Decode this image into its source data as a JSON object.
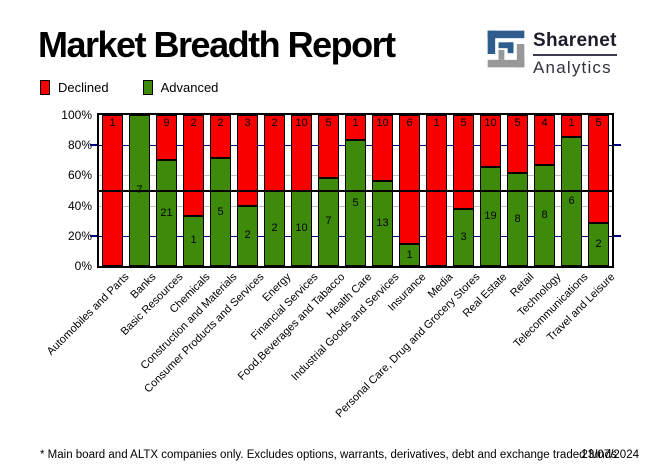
{
  "title": "Market Breadth Report",
  "logo": {
    "name": "Sharenet",
    "division": "Analytics",
    "blue": "#2e5c8c",
    "gray": "#97989a"
  },
  "legend": {
    "declined_label": "Declined",
    "advanced_label": "Advanced"
  },
  "colors": {
    "declined": "#f80000",
    "advanced": "#3e8a0a",
    "grid_navy": "#000080",
    "grid_gray": "#c0c0c0",
    "reference_line": "#000000"
  },
  "chart_data": {
    "type": "bar",
    "stacked": true,
    "normalized": "percent_of_total",
    "title": "Market Breadth Report",
    "categories": [
      "Automobiles and Parts",
      "Banks",
      "Basic Resources",
      "Chemicals",
      "Construction and Materials",
      "Consumer Products and Services",
      "Energy",
      "Financial Services",
      "Food,Beverages and Tabacco",
      "Health Care",
      "Industrial Goods and Services",
      "Insurance",
      "Media",
      "Personal Care, Drug and Grocery Stores",
      "Real Estate",
      "Retail",
      "Technology",
      "Telecommunications",
      "Travel and Leisure"
    ],
    "series": [
      {
        "name": "Declined",
        "color": "#f80000",
        "values": [
          1,
          0,
          9,
          2,
          2,
          3,
          2,
          10,
          5,
          1,
          10,
          6,
          1,
          5,
          10,
          5,
          4,
          1,
          5
        ]
      },
      {
        "name": "Advanced",
        "color": "#3e8a0a",
        "values": [
          0,
          7,
          21,
          1,
          5,
          2,
          2,
          10,
          7,
          5,
          13,
          1,
          0,
          3,
          19,
          8,
          8,
          6,
          2
        ]
      }
    ],
    "y_ticks": [
      {
        "value": 100,
        "label": "100%"
      },
      {
        "value": 80,
        "label": "80%"
      },
      {
        "value": 60,
        "label": "60%"
      },
      {
        "value": 40,
        "label": "40%"
      },
      {
        "value": 20,
        "label": "20%"
      },
      {
        "value": 0,
        "label": "0%"
      }
    ],
    "ylim": [
      0,
      100
    ],
    "reference_line_pct": 50,
    "gridlines": {
      "navy_pct": [
        80,
        20
      ],
      "gray_pct": [
        60,
        40
      ]
    },
    "legend_position": "top-left",
    "grid": true
  },
  "footer": {
    "note": "* Main board and ALTX companies only. Excludes options, warrants, derivatives, debt and exchange traded funds",
    "date": "23/07/2024"
  }
}
